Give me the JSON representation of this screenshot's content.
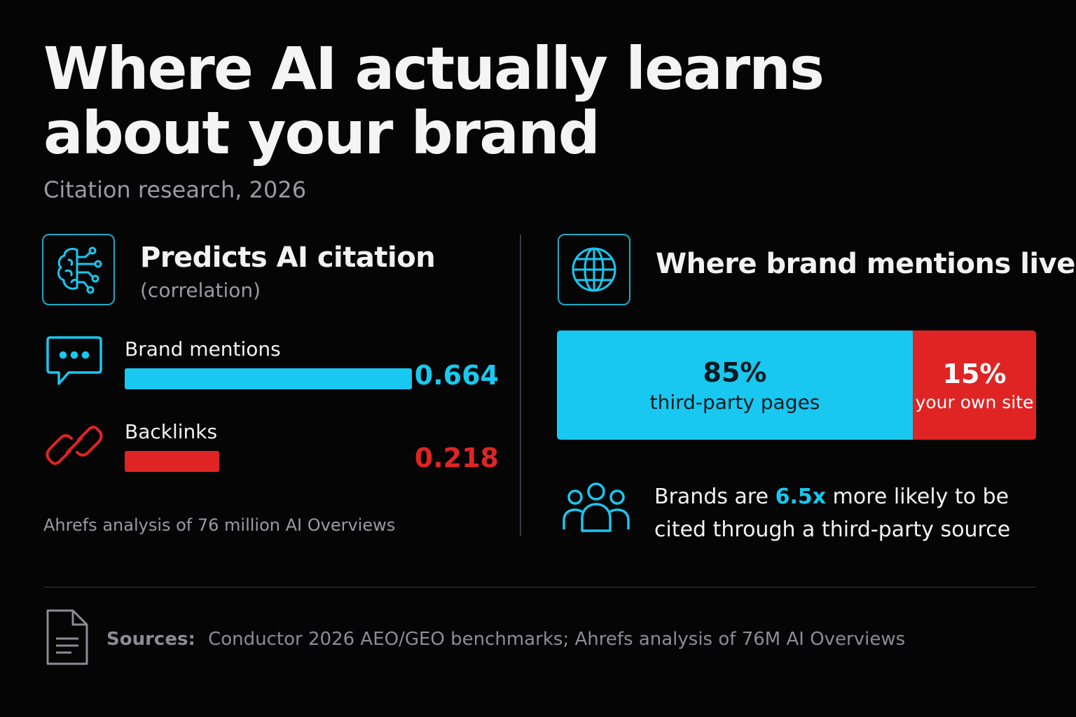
{
  "title_line1": "Where AI actually learns",
  "title_line2": "about your brand",
  "subtitle": "Citation research, 2026",
  "colors": {
    "background": "#050506",
    "accent_cyan": "#18c8f0",
    "accent_red": "#e02424",
    "muted_text": "#9a9aa2"
  },
  "left_panel": {
    "icon": "brain-circuit-icon",
    "heading": "Predicts AI citation",
    "subheading": "(correlation)",
    "note": "Ahrefs analysis of 76 million AI Overviews"
  },
  "right_panel": {
    "icon": "globe-icon",
    "heading": "Where brand mentions live",
    "stat_prefix": "Brands are",
    "stat_highlight": "6.5x",
    "stat_suffix_line1": "more likely to be",
    "stat_line2": "cited through a third-party source",
    "stat_icon": "users-group-icon"
  },
  "footer": {
    "icon": "document-icon",
    "sources_label": "Sources:",
    "sources_text": "Conductor 2026 AEO/GEO benchmarks; Ahrefs analysis of 76M AI Overviews"
  },
  "chart_data": [
    {
      "type": "bar",
      "orientation": "horizontal",
      "categories": [
        "Brand mentions",
        "Backlinks"
      ],
      "values": [
        0.664,
        0.218
      ],
      "value_labels": [
        "0.664",
        "0.218"
      ],
      "colors": [
        "#18c8f0",
        "#e02424"
      ],
      "icons": [
        "chat-bubble-icon",
        "link-icon"
      ],
      "xlim": [
        0,
        0.664
      ]
    },
    {
      "type": "bar",
      "orientation": "stacked-horizontal",
      "categories": [
        "third-party pages",
        "your own site"
      ],
      "values": [
        85,
        15
      ],
      "value_labels": [
        "85%",
        "15%"
      ],
      "colors": [
        "#18c8f0",
        "#e02424"
      ]
    }
  ]
}
